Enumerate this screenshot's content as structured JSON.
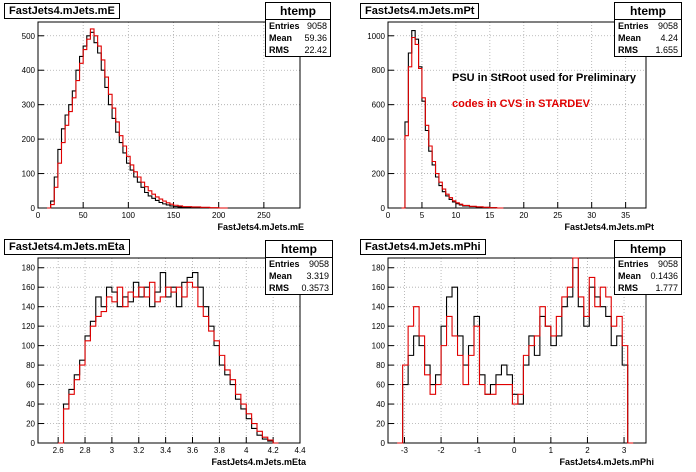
{
  "colors": {
    "series_a": "#000000",
    "series_b": "#e00000",
    "grid": "#aaaaaa"
  },
  "notes": {
    "line1": "PSU in StRoot used for Preliminary",
    "line2": "codes in CVS  in STARDEV"
  },
  "footer": "",
  "chart_data": [
    {
      "type": "histogram",
      "title": "FastJets4.mJets.mE",
      "xlabel": "FastJets4.mJets.mE",
      "stats": {
        "name": "htemp",
        "entries": "9058",
        "mean": "59.36",
        "rms": "22.42"
      },
      "xlim": [
        0,
        290
      ],
      "ylim": [
        0,
        540
      ],
      "xticks": [
        0,
        50,
        100,
        150,
        200,
        250
      ],
      "yticks": [
        0,
        100,
        200,
        300,
        400,
        500
      ],
      "grid": true,
      "series": [
        {
          "name": "black",
          "color": "#000000",
          "x": [
            10,
            14,
            18,
            22,
            26,
            30,
            34,
            38,
            42,
            46,
            50,
            54,
            58,
            62,
            66,
            70,
            74,
            78,
            82,
            86,
            90,
            94,
            98,
            102,
            106,
            110,
            114,
            118,
            122,
            126,
            130,
            134,
            138,
            142,
            146,
            150,
            155,
            160,
            170,
            180,
            190,
            200
          ],
          "y": [
            0,
            20,
            90,
            170,
            230,
            270,
            300,
            340,
            400,
            440,
            470,
            500,
            510,
            480,
            450,
            400,
            350,
            300,
            260,
            220,
            190,
            160,
            130,
            110,
            90,
            75,
            60,
            45,
            35,
            28,
            22,
            16,
            12,
            9,
            6,
            4,
            3,
            2,
            1,
            1,
            0,
            0
          ]
        },
        {
          "name": "red",
          "color": "#e00000",
          "x": [
            10,
            14,
            18,
            22,
            26,
            30,
            34,
            38,
            42,
            46,
            50,
            54,
            58,
            62,
            66,
            70,
            74,
            78,
            82,
            86,
            90,
            94,
            98,
            102,
            106,
            110,
            114,
            118,
            122,
            126,
            130,
            134,
            138,
            142,
            146,
            150,
            155,
            160,
            170,
            180,
            190,
            200
          ],
          "y": [
            0,
            10,
            60,
            130,
            190,
            240,
            280,
            320,
            370,
            420,
            460,
            490,
            520,
            500,
            470,
            430,
            380,
            330,
            290,
            250,
            210,
            180,
            150,
            125,
            105,
            90,
            75,
            62,
            50,
            40,
            32,
            26,
            20,
            15,
            11,
            8,
            6,
            4,
            3,
            2,
            1,
            0
          ]
        }
      ]
    },
    {
      "type": "histogram",
      "title": "FastJets4.mJets.mPt",
      "xlabel": "FastJets4.mJets.mPt",
      "stats": {
        "name": "htemp",
        "entries": "9058",
        "mean": "4.24",
        "rms": "1.655"
      },
      "xlim": [
        0,
        38
      ],
      "ylim": [
        0,
        1080
      ],
      "xticks": [
        0,
        5,
        10,
        15,
        20,
        25,
        30,
        35
      ],
      "yticks": [
        0,
        200,
        400,
        600,
        800,
        1000
      ],
      "grid": true,
      "series": [
        {
          "name": "black",
          "color": "#000000",
          "x": [
            2.0,
            2.5,
            3.0,
            3.5,
            4.0,
            4.5,
            5.0,
            5.5,
            6.0,
            6.5,
            7.0,
            7.5,
            8.0,
            8.5,
            9.0,
            9.5,
            10,
            10.5,
            11,
            12,
            13,
            14,
            15,
            16
          ],
          "y": [
            0,
            500,
            900,
            1030,
            980,
            820,
            620,
            450,
            330,
            250,
            180,
            130,
            95,
            70,
            50,
            35,
            25,
            18,
            12,
            8,
            5,
            3,
            2,
            0
          ]
        },
        {
          "name": "red",
          "color": "#e00000",
          "x": [
            2.0,
            2.5,
            3.0,
            3.5,
            4.0,
            4.5,
            5.0,
            5.5,
            6.0,
            6.5,
            7.0,
            7.5,
            8.0,
            8.5,
            9.0,
            9.5,
            10,
            10.5,
            11,
            12,
            13,
            14,
            15,
            16
          ],
          "y": [
            0,
            420,
            820,
            990,
            950,
            810,
            640,
            480,
            360,
            270,
            200,
            150,
            110,
            80,
            60,
            42,
            30,
            22,
            15,
            10,
            7,
            4,
            2,
            0
          ]
        }
      ]
    },
    {
      "type": "histogram",
      "title": "FastJets4.mJets.mEta",
      "xlabel": "FastJets4.mJets.mEta",
      "stats": {
        "name": "htemp",
        "entries": "9058",
        "mean": "3.319",
        "rms": "0.3573"
      },
      "xlim": [
        2.45,
        4.4
      ],
      "ylim": [
        0,
        190
      ],
      "xticks": [
        2.6,
        2.8,
        3.0,
        3.2,
        3.4,
        3.6,
        3.8,
        4.0,
        4.2,
        4.4
      ],
      "xticklabels": [
        "2.6",
        "2.8",
        "3",
        "3.2",
        "3.4",
        "3.6",
        "3.8",
        "4",
        "4.2",
        "4.4"
      ],
      "yticks": [
        0,
        20,
        40,
        60,
        80,
        100,
        120,
        140,
        160,
        180
      ],
      "grid": true,
      "series": [
        {
          "name": "black",
          "color": "#000000",
          "x": [
            2.6,
            2.64,
            2.68,
            2.72,
            2.76,
            2.8,
            2.84,
            2.88,
            2.92,
            2.96,
            3.0,
            3.04,
            3.08,
            3.12,
            3.16,
            3.2,
            3.24,
            3.28,
            3.32,
            3.36,
            3.4,
            3.44,
            3.48,
            3.52,
            3.56,
            3.6,
            3.64,
            3.68,
            3.72,
            3.76,
            3.8,
            3.84,
            3.88,
            3.92,
            3.96,
            4.0,
            4.04,
            4.08,
            4.12,
            4.16,
            4.2
          ],
          "y": [
            0,
            40,
            55,
            70,
            85,
            110,
            125,
            150,
            140,
            160,
            155,
            140,
            150,
            145,
            165,
            150,
            160,
            140,
            155,
            175,
            150,
            160,
            140,
            165,
            170,
            175,
            160,
            140,
            120,
            100,
            80,
            70,
            60,
            45,
            35,
            25,
            15,
            8,
            4,
            2,
            0
          ]
        },
        {
          "name": "red",
          "color": "#e00000",
          "x": [
            2.6,
            2.64,
            2.68,
            2.72,
            2.76,
            2.8,
            2.84,
            2.88,
            2.92,
            2.96,
            3.0,
            3.04,
            3.08,
            3.12,
            3.16,
            3.2,
            3.24,
            3.28,
            3.32,
            3.36,
            3.4,
            3.44,
            3.48,
            3.52,
            3.56,
            3.6,
            3.64,
            3.68,
            3.72,
            3.76,
            3.8,
            3.84,
            3.88,
            3.92,
            3.96,
            4.0,
            4.04,
            4.08,
            4.12,
            4.16,
            4.2
          ],
          "y": [
            0,
            35,
            50,
            65,
            80,
            105,
            120,
            130,
            135,
            150,
            145,
            160,
            140,
            155,
            150,
            160,
            150,
            165,
            145,
            150,
            160,
            155,
            160,
            150,
            165,
            160,
            140,
            130,
            115,
            105,
            90,
            75,
            65,
            50,
            40,
            30,
            20,
            12,
            6,
            3,
            0
          ]
        }
      ]
    },
    {
      "type": "histogram",
      "title": "FastJets4.mJets.mPhi",
      "xlabel": "FastJets4.mJets.mPhi",
      "stats": {
        "name": "htemp",
        "entries": "9058",
        "mean": "0.1436",
        "rms": "1.777"
      },
      "xlim": [
        -3.45,
        3.6
      ],
      "ylim": [
        0,
        190
      ],
      "xticks": [
        -3,
        -2,
        -1,
        0,
        1,
        2,
        3
      ],
      "yticks": [
        0,
        20,
        40,
        60,
        80,
        100,
        120,
        140,
        160,
        180
      ],
      "grid": true,
      "series": [
        {
          "name": "black",
          "color": "#000000",
          "x": [
            -3.2,
            -3.05,
            -2.9,
            -2.75,
            -2.6,
            -2.45,
            -2.3,
            -2.15,
            -2.0,
            -1.85,
            -1.7,
            -1.55,
            -1.4,
            -1.25,
            -1.1,
            -0.95,
            -0.8,
            -0.65,
            -0.5,
            -0.35,
            -0.2,
            -0.05,
            0.1,
            0.25,
            0.4,
            0.55,
            0.7,
            0.85,
            1.0,
            1.15,
            1.3,
            1.45,
            1.6,
            1.75,
            1.9,
            2.05,
            2.2,
            2.35,
            2.5,
            2.65,
            2.8,
            2.95,
            3.1
          ],
          "y": [
            0,
            60,
            90,
            110,
            100,
            80,
            60,
            70,
            120,
            150,
            160,
            110,
            80,
            100,
            130,
            70,
            50,
            60,
            70,
            80,
            70,
            50,
            40,
            80,
            110,
            90,
            130,
            120,
            100,
            110,
            140,
            150,
            180,
            140,
            120,
            160,
            150,
            140,
            130,
            100,
            110,
            80,
            0
          ]
        },
        {
          "name": "red",
          "color": "#e00000",
          "x": [
            -3.2,
            -3.05,
            -2.9,
            -2.75,
            -2.6,
            -2.45,
            -2.3,
            -2.15,
            -2.0,
            -1.85,
            -1.7,
            -1.55,
            -1.4,
            -1.25,
            -1.1,
            -0.95,
            -0.8,
            -0.65,
            -0.5,
            -0.35,
            -0.2,
            -0.05,
            0.1,
            0.25,
            0.4,
            0.55,
            0.7,
            0.85,
            1.0,
            1.15,
            1.3,
            1.45,
            1.6,
            1.75,
            1.9,
            2.05,
            2.2,
            2.35,
            2.5,
            2.65,
            2.8,
            2.95,
            3.1
          ],
          "y": [
            0,
            80,
            120,
            140,
            110,
            70,
            50,
            60,
            100,
            130,
            110,
            90,
            60,
            90,
            120,
            60,
            50,
            50,
            60,
            60,
            60,
            40,
            50,
            90,
            100,
            110,
            140,
            120,
            110,
            130,
            150,
            160,
            190,
            150,
            130,
            170,
            140,
            160,
            150,
            120,
            130,
            100,
            0
          ]
        }
      ]
    }
  ]
}
